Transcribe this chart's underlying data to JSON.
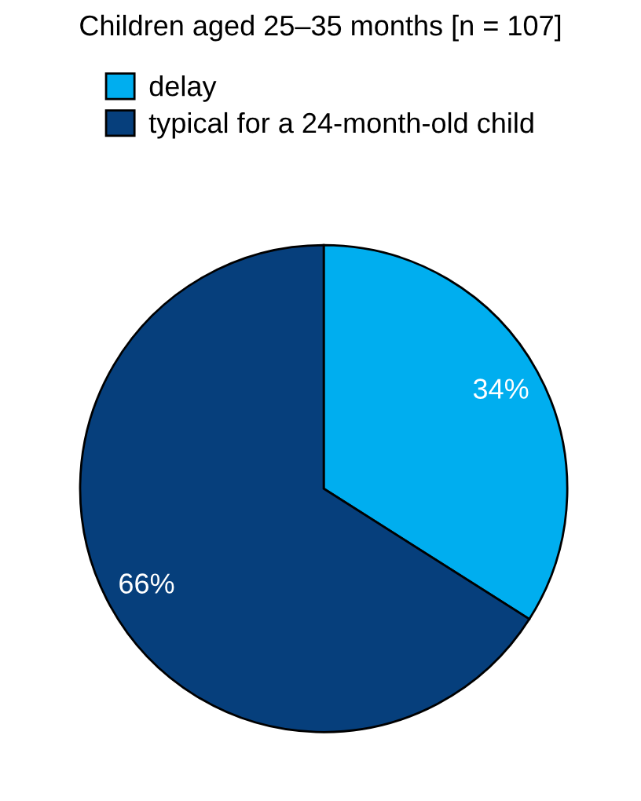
{
  "chart_data": {
    "type": "pie",
    "title": "Children aged 25–35 months [n = 107]",
    "categories": [
      "delay",
      "typical for a 24-month-old child"
    ],
    "values": [
      34,
      66
    ],
    "colors": [
      "#00aeef",
      "#063f7c"
    ],
    "value_labels": [
      "34%",
      "66%"
    ],
    "legend": "top"
  }
}
